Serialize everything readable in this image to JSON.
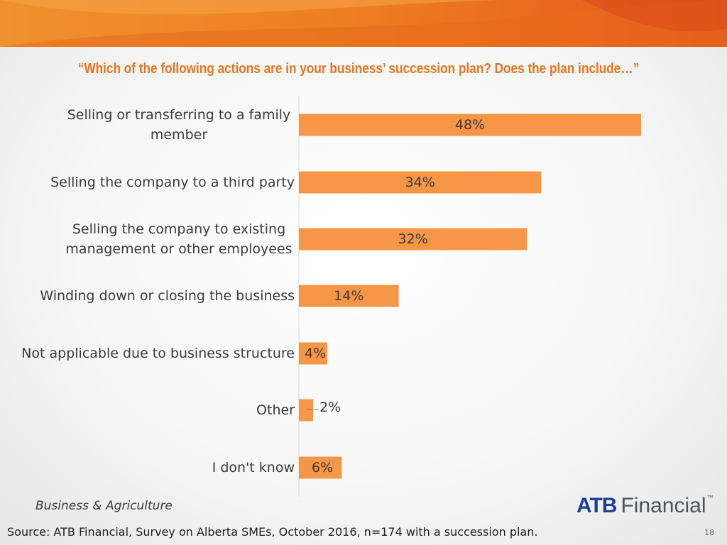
{
  "colors": {
    "accent": "#f79646",
    "title": "#e8731e",
    "banner": "#ea6a1e",
    "logo_blue": "#1c3f94"
  },
  "question": "“Which of the following actions are in your business’ succession plan? Does the plan include…”",
  "chart_data": {
    "type": "bar",
    "orientation": "horizontal",
    "categories": [
      "Selling or transferring to a family member",
      "Selling the company to a third party",
      "Selling the company to existing management or other employees",
      "Winding down or closing the business",
      "Not applicable due to business structure",
      "Other",
      "I don't know"
    ],
    "category_lines": [
      [
        "Selling or transferring to a family",
        "member"
      ],
      [
        "Selling the company to a third party"
      ],
      [
        "Selling the company to existing",
        "management or other employees"
      ],
      [
        "Winding down or closing the business"
      ],
      [
        "Not applicable due to business structure"
      ],
      [
        "Other"
      ],
      [
        "I don't know"
      ]
    ],
    "values": [
      48,
      34,
      32,
      14,
      4,
      2,
      6
    ],
    "labels": [
      "48%",
      "34%",
      "32%",
      "14%",
      "4%",
      "2%",
      "6%"
    ],
    "xlim": [
      0,
      50
    ],
    "grid": false,
    "color": "#f79646"
  },
  "footer": {
    "division": "Business & Agriculture",
    "logo_brand": "ATB",
    "logo_word": "Financial",
    "logo_tm": "™",
    "source": "Source:  ATB Financial, Survey on Alberta SMEs, October 2016, n=174 with a succession plan.",
    "page_number": "18"
  }
}
